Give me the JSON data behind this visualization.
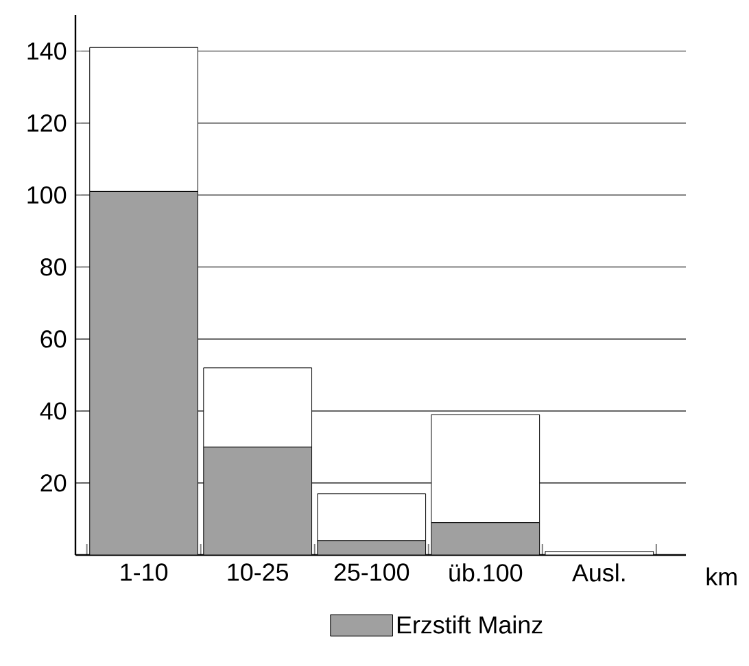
{
  "chart_data": {
    "type": "bar",
    "xlabel": "km",
    "categories": [
      "1-10",
      "10-25",
      "25-100",
      "üb.100",
      "Ausl."
    ],
    "stacked": true,
    "series": [
      {
        "name": "Erzstift Mainz",
        "color": "#a0a0a0",
        "values": [
          101,
          30,
          4,
          9,
          0
        ]
      },
      {
        "color": "#ffffff",
        "values": [
          40,
          22,
          13,
          30,
          1
        ]
      }
    ],
    "ylim": [
      0,
      150
    ],
    "yticks": [
      20,
      40,
      60,
      80,
      100,
      120,
      140
    ],
    "grid": "y",
    "legend": "bottom"
  }
}
